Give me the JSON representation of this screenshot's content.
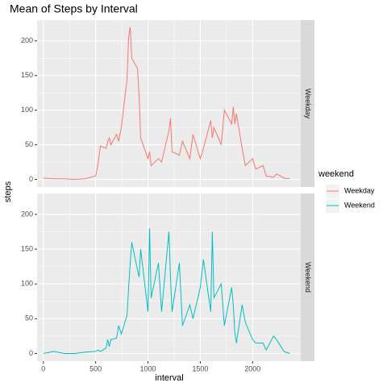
{
  "chart_data": {
    "type": "line",
    "title": "Mean of Steps by Interval",
    "x_label": "interval",
    "y_label": "steps",
    "legend_title": "weekend",
    "x": [
      0,
      100,
      200,
      300,
      400,
      500,
      520,
      545,
      600,
      615,
      630,
      645,
      700,
      720,
      745,
      800,
      815,
      830,
      845,
      900,
      915,
      930,
      1000,
      1015,
      1030,
      1100,
      1130,
      1200,
      1215,
      1230,
      1300,
      1330,
      1400,
      1430,
      1500,
      1530,
      1600,
      1615,
      1630,
      1700,
      1730,
      1800,
      1815,
      1830,
      1845,
      1900,
      1930,
      2000,
      2030,
      2100,
      2130,
      2200,
      2230,
      2300,
      2355
    ],
    "series": [
      {
        "name": "Weekday",
        "color": "#F8766D",
        "values": [
          2,
          1,
          1,
          0,
          1,
          5,
          20,
          48,
          45,
          55,
          60,
          50,
          65,
          55,
          75,
          145,
          205,
          220,
          175,
          160,
          120,
          60,
          30,
          40,
          20,
          30,
          25,
          70,
          88,
          40,
          35,
          55,
          30,
          65,
          30,
          45,
          85,
          60,
          75,
          50,
          100,
          80,
          105,
          80,
          95,
          45,
          20,
          30,
          15,
          20,
          5,
          3,
          8,
          2,
          1
        ]
      },
      {
        "name": "Weekend",
        "color": "#00BFC4",
        "values": [
          0,
          3,
          0,
          0,
          2,
          3,
          5,
          3,
          8,
          20,
          10,
          20,
          22,
          40,
          28,
          55,
          95,
          130,
          160,
          120,
          110,
          150,
          60,
          180,
          80,
          130,
          60,
          175,
          110,
          60,
          130,
          40,
          70,
          50,
          95,
          135,
          60,
          175,
          80,
          100,
          40,
          95,
          70,
          30,
          15,
          70,
          45,
          20,
          15,
          15,
          5,
          25,
          20,
          3,
          0
        ]
      }
    ],
    "xlim": [
      -60,
      2460
    ],
    "ylim": [
      -11,
      230
    ],
    "xticks": [
      0,
      500,
      1000,
      1500,
      2000
    ],
    "yticks": [
      0,
      50,
      100,
      150,
      200
    ],
    "grid": true,
    "facet": true
  }
}
